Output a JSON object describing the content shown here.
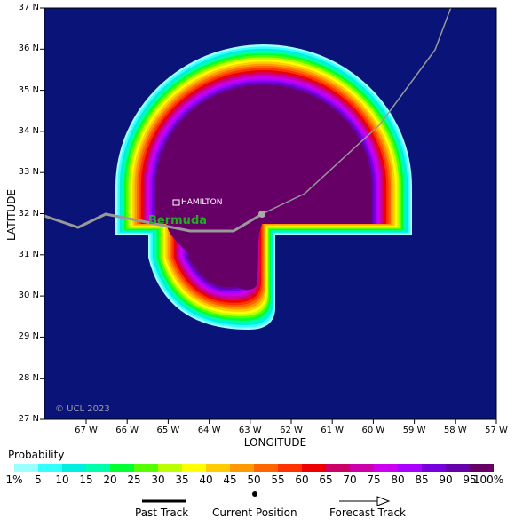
{
  "map": {
    "latitude_label": "LATITUDE",
    "longitude_label": "LONGITUDE",
    "lat_ticks": [
      "37 N",
      "36 N",
      "35 N",
      "34 N",
      "33 N",
      "32 N",
      "31 N",
      "30 N",
      "29 N",
      "28 N",
      "27 N"
    ],
    "lon_ticks": [
      "67 W",
      "66 W",
      "65 W",
      "64 W",
      "63 W",
      "62 W",
      "61 W",
      "60 W",
      "59 W",
      "58 W",
      "57 W"
    ],
    "copyright": "© UCL 2023",
    "city": "HAMILTON",
    "island": "Bermuda",
    "ocean_color": "#0a1478"
  },
  "legend": {
    "title": "Probability",
    "labels": [
      "1%",
      "5",
      "10",
      "15",
      "20",
      "25",
      "30",
      "35",
      "40",
      "45",
      "50",
      "55",
      "60",
      "65",
      "70",
      "75",
      "80",
      "85",
      "90",
      "95",
      "100%"
    ],
    "colors": [
      "#99ffff",
      "#33ffff",
      "#00eedd",
      "#00ffaa",
      "#00ff33",
      "#55ff00",
      "#bbff00",
      "#ffff00",
      "#ffcc00",
      "#ff9900",
      "#ff6600",
      "#ff3300",
      "#ee0000",
      "#cc0066",
      "#cc00aa",
      "#cc00ee",
      "#aa00ff",
      "#7700dd",
      "#6600aa",
      "#660066"
    ],
    "past_track": "Past Track",
    "current_position": "Current Position",
    "forecast_track": "Forecast Track"
  }
}
